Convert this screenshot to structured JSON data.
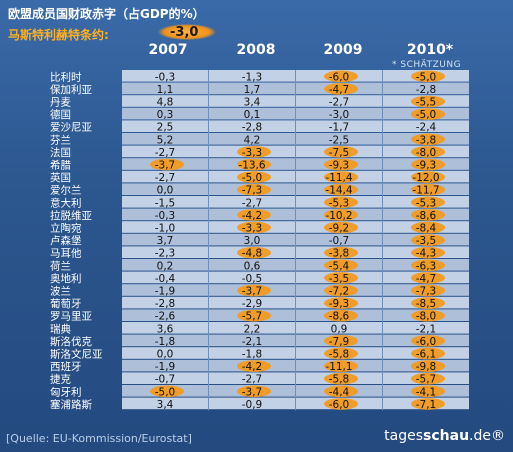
{
  "chart_data": {
    "type": "table",
    "title": "欧盟成员国财政赤字（占GDP的%）",
    "criterion": {
      "label": "马斯特利赫特条约:",
      "value": "-3,0"
    },
    "columns": [
      "2007",
      "2008",
      "2009",
      "2010*"
    ],
    "estimate_note": "* SCHÄTZUNG",
    "rows": [
      {
        "country": "比利时",
        "values": [
          "-0,3",
          "-1,3",
          "-6,0",
          "-5,0"
        ]
      },
      {
        "country": "保加利亚",
        "values": [
          "1,1",
          "1,7",
          "-4,7",
          "-2,8"
        ]
      },
      {
        "country": "丹麦",
        "values": [
          "4,8",
          "3,4",
          "-2,7",
          "-5,5"
        ]
      },
      {
        "country": "德国",
        "values": [
          "0,3",
          "0,1",
          "-3,0",
          "-5,0"
        ]
      },
      {
        "country": "爱沙尼亚",
        "values": [
          "2,5",
          "-2,8",
          "-1,7",
          "-2,4"
        ]
      },
      {
        "country": "芬兰",
        "values": [
          "5,2",
          "4,2",
          "-2,5",
          "-3,8"
        ]
      },
      {
        "country": "法国",
        "values": [
          "-2,7",
          "-3,3",
          "-7,5",
          "-8,0"
        ]
      },
      {
        "country": "希腊",
        "values": [
          "-3,7",
          "-13,6",
          "-9,3",
          "-9,3"
        ]
      },
      {
        "country": "英国",
        "values": [
          "-2,7",
          "-5,0",
          "-11,4",
          "-12,0"
        ]
      },
      {
        "country": "爱尔兰",
        "values": [
          "0,0",
          "-7,3",
          "-14,4",
          "-11,7"
        ]
      },
      {
        "country": "意大利",
        "values": [
          "-1,5",
          "-2,7",
          "-5,3",
          "-5,3"
        ]
      },
      {
        "country": "拉脱维亚",
        "values": [
          "-0,3",
          "-4,2",
          "-10,2",
          "-8,6"
        ]
      },
      {
        "country": "立陶宛",
        "values": [
          "-1,0",
          "-3,3",
          "-9,2",
          "-8,4"
        ]
      },
      {
        "country": "卢森堡",
        "values": [
          "3,7",
          "3,0",
          "-0,7",
          "-3,5"
        ]
      },
      {
        "country": "马耳他",
        "values": [
          "-2,3",
          "-4,8",
          "-3,8",
          "-4,3"
        ]
      },
      {
        "country": "荷兰",
        "values": [
          "0,2",
          "0,6",
          "-5,4",
          "-6,3"
        ]
      },
      {
        "country": "奥地利",
        "values": [
          "-0,4",
          "-0,5",
          "-3,5",
          "-4,7"
        ]
      },
      {
        "country": "波兰",
        "values": [
          "-1,9",
          "-3,7",
          "-7,2",
          "-7,3"
        ]
      },
      {
        "country": "葡萄牙",
        "values": [
          "-2,8",
          "-2,9",
          "-9,3",
          "-8,5"
        ]
      },
      {
        "country": "罗马里亚",
        "values": [
          "-2,6",
          "-5,7",
          "-8,6",
          "-8,0"
        ]
      },
      {
        "country": "瑞典",
        "values": [
          "3,6",
          "2,2",
          "0,9",
          "-2,1"
        ]
      },
      {
        "country": "斯洛伐克",
        "values": [
          "-1,8",
          "-2,1",
          "-7,9",
          "-6,0"
        ]
      },
      {
        "country": "斯洛文尼亚",
        "values": [
          "0,0",
          "-1,8",
          "-5,8",
          "-6,1"
        ]
      },
      {
        "country": "西班牙",
        "values": [
          "-1,9",
          "-4,2",
          "-11,1",
          "-9,8"
        ]
      },
      {
        "country": "捷克",
        "values": [
          "-0,7",
          "-2,7",
          "-5,8",
          "-5,7"
        ]
      },
      {
        "country": "匈牙利",
        "values": [
          "-5,0",
          "-3,7",
          "-4,4",
          "-4,1"
        ]
      },
      {
        "country": "塞浦路斯",
        "values": [
          "3,4",
          "-0,9",
          "-6,0",
          "-7,1"
        ]
      }
    ],
    "threshold": -3.0,
    "source": "[Quelle: EU-Kommission/Eurostat]",
    "brand": {
      "prefix": "tages",
      "bold": "schau",
      "suffix": ".de®"
    },
    "colors": {
      "row_light": "#c2d1e6",
      "row_dark": "#aebfd9",
      "label_bg": "#2f5b94",
      "highlight": "#f39a1f",
      "text": "#111111",
      "label_text": "#ffffff"
    }
  }
}
